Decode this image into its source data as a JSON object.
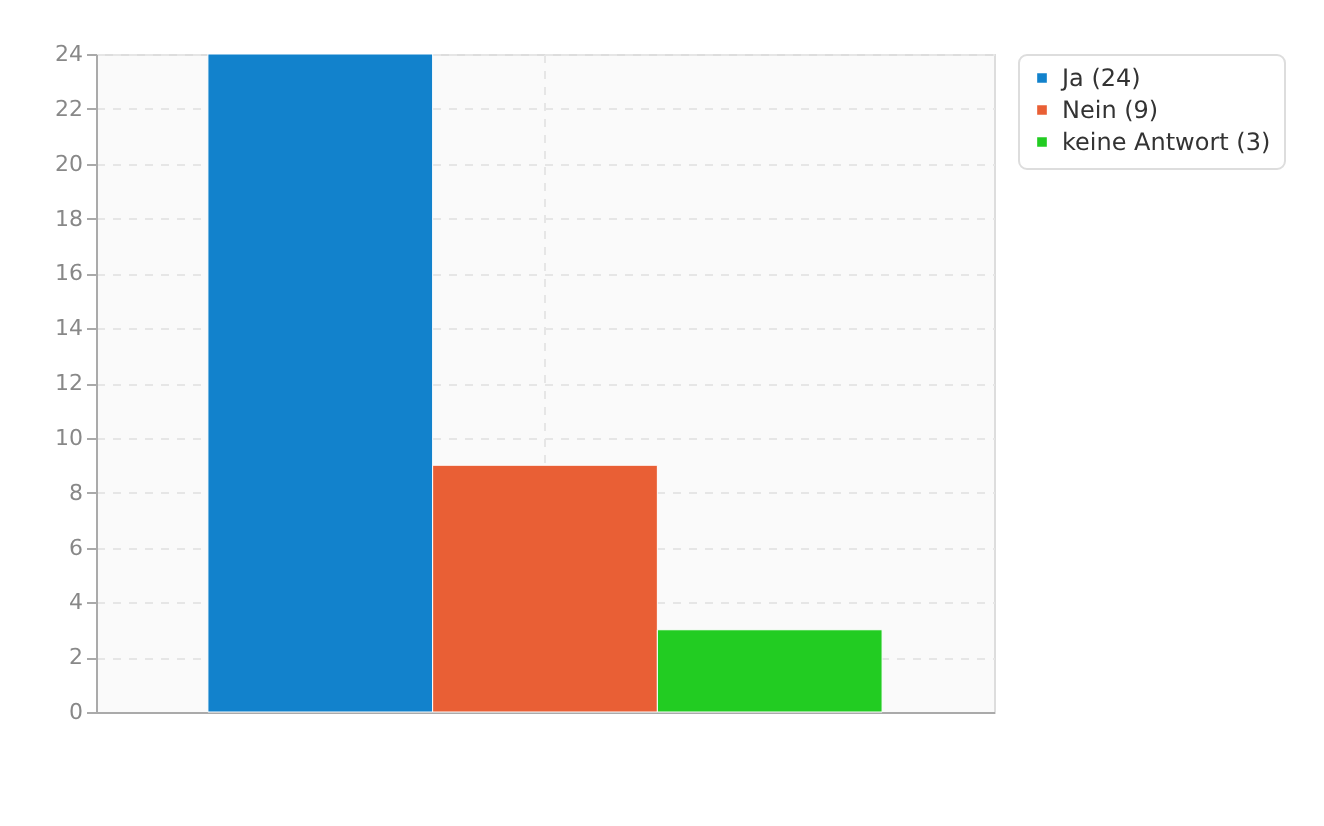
{
  "chart_data": {
    "type": "bar",
    "categories": [
      null
    ],
    "series": [
      {
        "name": "Ja (24)",
        "color": "#1282cc",
        "values": [
          24
        ]
      },
      {
        "name": "Nein (9)",
        "color": "#e95f35",
        "values": [
          9
        ]
      },
      {
        "name": "keine Antwort (3)",
        "color": "#22cc22",
        "values": [
          3
        ]
      }
    ],
    "ylim": [
      0,
      24
    ],
    "yticks": [
      0,
      2,
      4,
      6,
      8,
      10,
      12,
      14,
      16,
      18,
      20,
      22,
      24
    ],
    "grid": true,
    "legend": "top right",
    "tick_labels": "y"
  }
}
